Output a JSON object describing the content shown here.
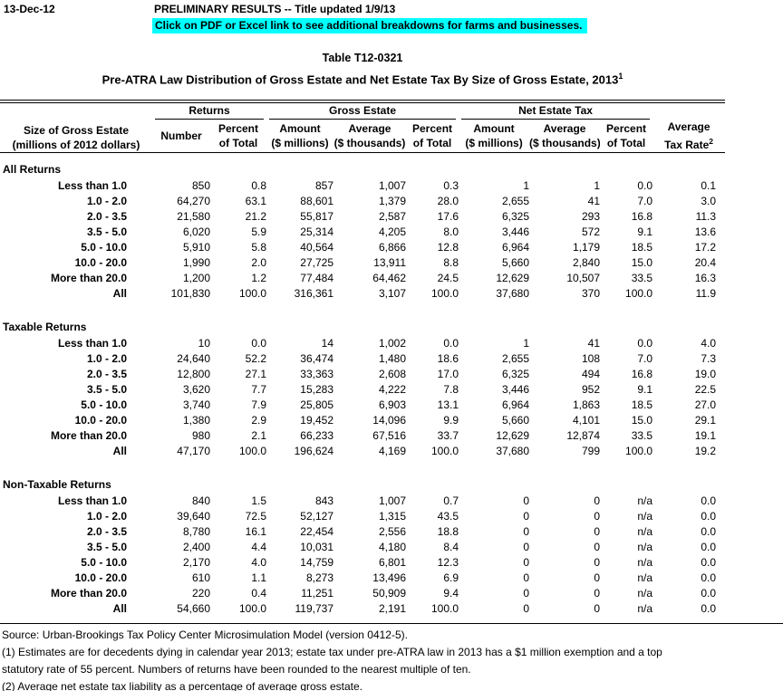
{
  "header": {
    "date": "13-Dec-12",
    "preliminary": "PRELIMINARY RESULTS -- Title updated 1/9/13",
    "highlight_note": "Click on PDF or Excel link to see additional breakdowns for farms and businesses.",
    "highlight_color": "#00FFFF",
    "table_number": "Table T12-0321",
    "title": "Pre-ATRA Law Distribution of Gross Estate and Net Estate Tax By Size of Gross Estate, 2013",
    "title_superscript": "1"
  },
  "table": {
    "row_header": {
      "line1": "Size of Gross Estate",
      "line2": "(millions of 2012 dollars)"
    },
    "groups": [
      {
        "label": "Returns"
      },
      {
        "label": "Gross Estate"
      },
      {
        "label": "Net Estate Tax"
      }
    ],
    "sub_headers": {
      "number": "Number",
      "percent_line1": "Percent",
      "percent_line2": "of Total",
      "amount_line1": "Amount",
      "amount_line2": "($ millions)",
      "average_line1": "Average",
      "average_line2": "($ thousands)"
    },
    "avg_rate_header": {
      "line1": "Average",
      "line2": "Tax Rate",
      "superscript": "2"
    },
    "column_keys": [
      "row-label",
      "returns-number",
      "returns-percent",
      "gross-amount",
      "gross-average",
      "gross-percent",
      "net-amount",
      "net-average",
      "net-percent",
      "avg-tax-rate"
    ],
    "sections": [
      {
        "name": "All Returns",
        "rows": [
          [
            "Less than 1.0",
            "850",
            "0.8",
            "857",
            "1,007",
            "0.3",
            "1",
            "1",
            "0.0",
            "0.1"
          ],
          [
            "1.0 - 2.0",
            "64,270",
            "63.1",
            "88,601",
            "1,379",
            "28.0",
            "2,655",
            "41",
            "7.0",
            "3.0"
          ],
          [
            "2.0 - 3.5",
            "21,580",
            "21.2",
            "55,817",
            "2,587",
            "17.6",
            "6,325",
            "293",
            "16.8",
            "11.3"
          ],
          [
            "3.5 - 5.0",
            "6,020",
            "5.9",
            "25,314",
            "4,205",
            "8.0",
            "3,446",
            "572",
            "9.1",
            "13.6"
          ],
          [
            "5.0 - 10.0",
            "5,910",
            "5.8",
            "40,564",
            "6,866",
            "12.8",
            "6,964",
            "1,179",
            "18.5",
            "17.2"
          ],
          [
            "10.0 - 20.0",
            "1,990",
            "2.0",
            "27,725",
            "13,911",
            "8.8",
            "5,660",
            "2,840",
            "15.0",
            "20.4"
          ],
          [
            "More than 20.0",
            "1,200",
            "1.2",
            "77,484",
            "64,462",
            "24.5",
            "12,629",
            "10,507",
            "33.5",
            "16.3"
          ],
          [
            "All",
            "101,830",
            "100.0",
            "316,361",
            "3,107",
            "100.0",
            "37,680",
            "370",
            "100.0",
            "11.9"
          ]
        ]
      },
      {
        "name": "Taxable Returns",
        "rows": [
          [
            "Less than 1.0",
            "10",
            "0.0",
            "14",
            "1,002",
            "0.0",
            "1",
            "41",
            "0.0",
            "4.0"
          ],
          [
            "1.0 - 2.0",
            "24,640",
            "52.2",
            "36,474",
            "1,480",
            "18.6",
            "2,655",
            "108",
            "7.0",
            "7.3"
          ],
          [
            "2.0 - 3.5",
            "12,800",
            "27.1",
            "33,363",
            "2,608",
            "17.0",
            "6,325",
            "494",
            "16.8",
            "19.0"
          ],
          [
            "3.5 - 5.0",
            "3,620",
            "7.7",
            "15,283",
            "4,222",
            "7.8",
            "3,446",
            "952",
            "9.1",
            "22.5"
          ],
          [
            "5.0 - 10.0",
            "3,740",
            "7.9",
            "25,805",
            "6,903",
            "13.1",
            "6,964",
            "1,863",
            "18.5",
            "27.0"
          ],
          [
            "10.0 - 20.0",
            "1,380",
            "2.9",
            "19,452",
            "14,096",
            "9.9",
            "5,660",
            "4,101",
            "15.0",
            "29.1"
          ],
          [
            "More than 20.0",
            "980",
            "2.1",
            "66,233",
            "67,516",
            "33.7",
            "12,629",
            "12,874",
            "33.5",
            "19.1"
          ],
          [
            "All",
            "47,170",
            "100.0",
            "196,624",
            "4,169",
            "100.0",
            "37,680",
            "799",
            "100.0",
            "19.2"
          ]
        ]
      },
      {
        "name": "Non-Taxable Returns",
        "rows": [
          [
            "Less than 1.0",
            "840",
            "1.5",
            "843",
            "1,007",
            "0.7",
            "0",
            "0",
            "n/a",
            "0.0"
          ],
          [
            "1.0 - 2.0",
            "39,640",
            "72.5",
            "52,127",
            "1,315",
            "43.5",
            "0",
            "0",
            "n/a",
            "0.0"
          ],
          [
            "2.0 - 3.5",
            "8,780",
            "16.1",
            "22,454",
            "2,556",
            "18.8",
            "0",
            "0",
            "n/a",
            "0.0"
          ],
          [
            "3.5 - 5.0",
            "2,400",
            "4.4",
            "10,031",
            "4,180",
            "8.4",
            "0",
            "0",
            "n/a",
            "0.0"
          ],
          [
            "5.0 - 10.0",
            "2,170",
            "4.0",
            "14,759",
            "6,801",
            "12.3",
            "0",
            "0",
            "n/a",
            "0.0"
          ],
          [
            "10.0 - 20.0",
            "610",
            "1.1",
            "8,273",
            "13,496",
            "6.9",
            "0",
            "0",
            "n/a",
            "0.0"
          ],
          [
            "More than 20.0",
            "220",
            "0.4",
            "11,251",
            "50,909",
            "9.4",
            "0",
            "0",
            "n/a",
            "0.0"
          ],
          [
            "All",
            "54,660",
            "100.0",
            "119,737",
            "2,191",
            "100.0",
            "0",
            "0",
            "n/a",
            "0.0"
          ]
        ]
      }
    ]
  },
  "footnotes": {
    "lines": [
      "Source: Urban-Brookings Tax Policy Center Microsimulation Model (version 0412-5).",
      "(1) Estimates are for decedents dying in calendar year 2013; estate tax under pre-ATRA law in 2013 has a $1 million exemption and a top",
      "statutory rate of 55 percent. Numbers of returns have been rounded to the nearest multiple of ten.",
      "(2) Average net estate tax liability as a percentage of average gross estate."
    ]
  }
}
